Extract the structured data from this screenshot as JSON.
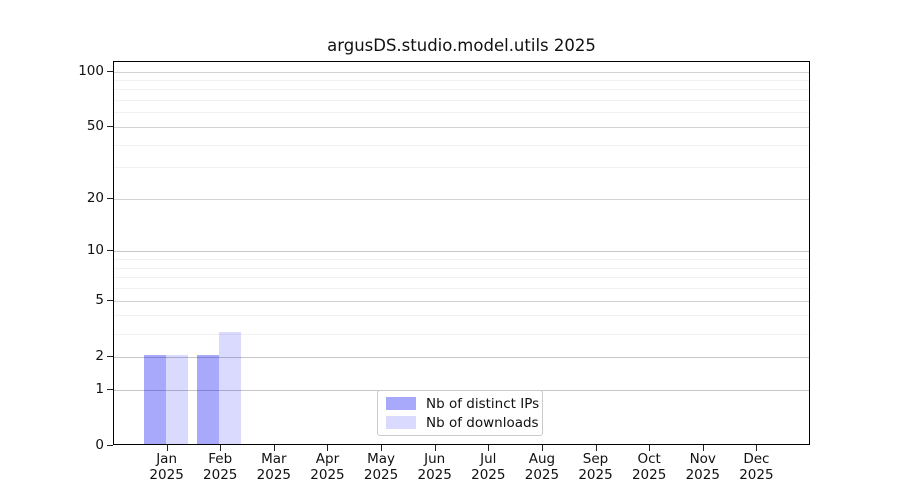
{
  "chart_data": {
    "type": "bar",
    "title": "argusDS.studio.model.utils 2025",
    "categories": [
      "Jan",
      "Feb",
      "Mar",
      "Apr",
      "May",
      "Jun",
      "Jul",
      "Aug",
      "Sep",
      "Oct",
      "Nov",
      "Dec"
    ],
    "year_label": "2025",
    "series": [
      {
        "name": "Nb of distinct IPs",
        "color": "#a9a9fa",
        "fill": "rgba(10,10,245,0.35)",
        "values": [
          2,
          2,
          0,
          0,
          0,
          0,
          0,
          0,
          0,
          0,
          0,
          0
        ]
      },
      {
        "name": "Nb of downloads",
        "color": "#dadafd",
        "fill": "rgba(10,10,245,0.15)",
        "values": [
          2,
          3,
          0,
          0,
          0,
          0,
          0,
          0,
          0,
          0,
          0,
          0
        ]
      }
    ],
    "yscale": "log1p",
    "ylim": [
      0,
      112
    ],
    "y_major_ticks": [
      0,
      1,
      2,
      5,
      10,
      20,
      50,
      100
    ],
    "y_emphasized_gridlines": [
      1,
      2,
      10
    ],
    "y_minor_ticks": [
      3,
      4,
      6,
      7,
      8,
      9,
      30,
      40,
      60,
      70,
      80,
      90
    ],
    "grid": true,
    "legend_position": "lower center",
    "colors": {
      "axis_spine": "#000000",
      "grid_major": "#d2d2d2",
      "grid_minor": "#f1f1f1",
      "text": "#111111",
      "background": "#ffffff"
    }
  }
}
